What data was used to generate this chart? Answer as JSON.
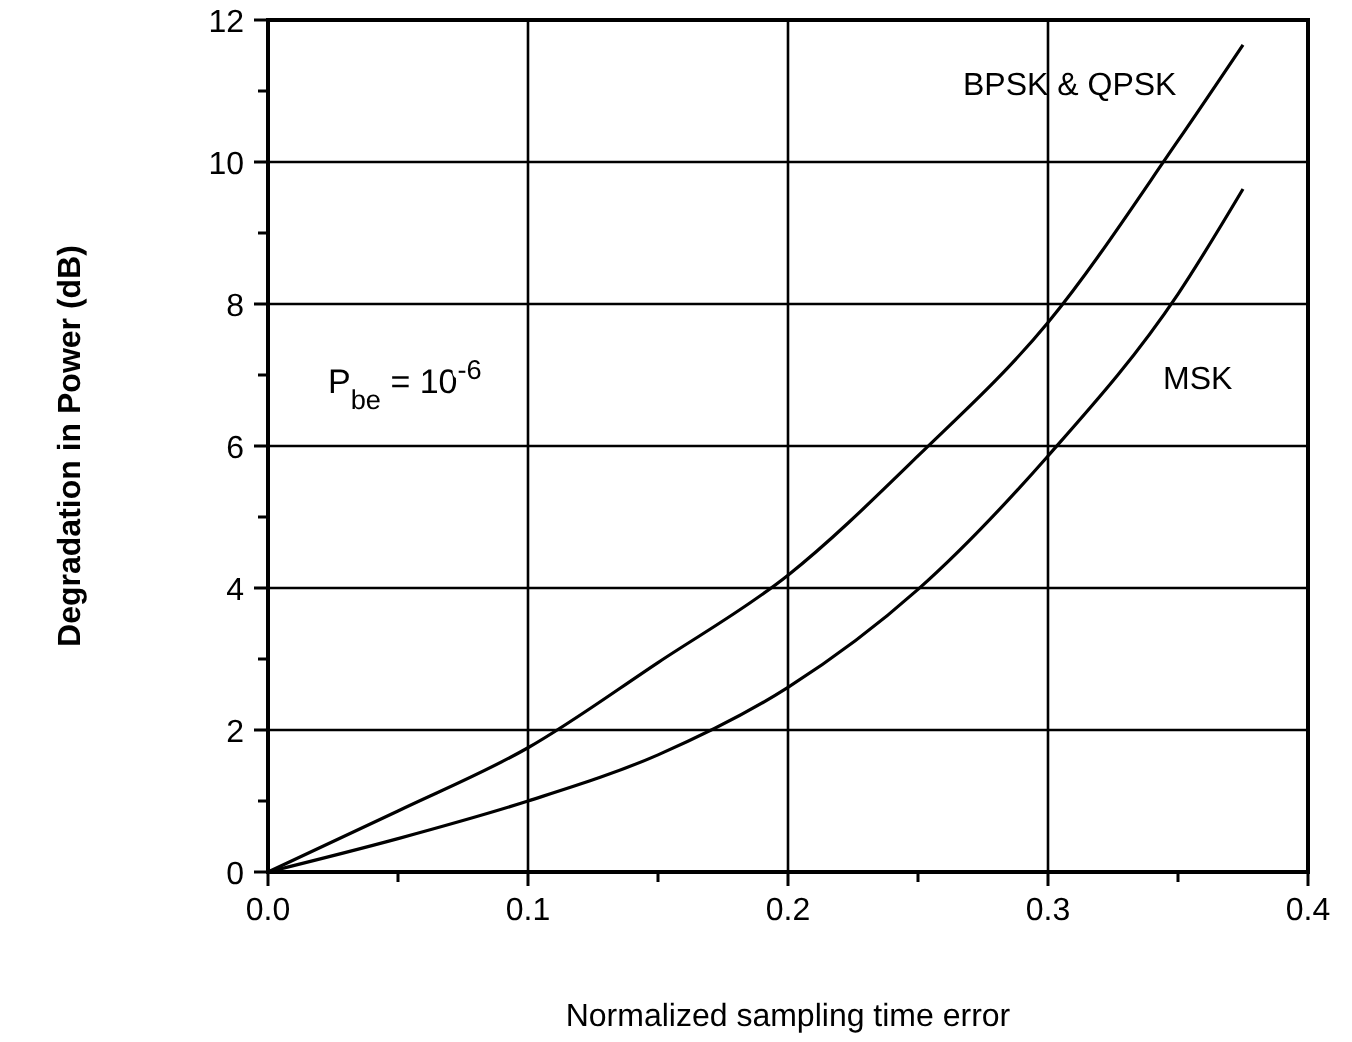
{
  "chart_data": {
    "type": "line",
    "xlabel": "Normalized sampling time error",
    "ylabel": "Degradation in Power (dB)",
    "xlim": [
      0,
      0.4
    ],
    "ylim": [
      0,
      12
    ],
    "xticks": [
      {
        "value": 0,
        "label": "0.0"
      },
      {
        "value": 0.05,
        "label": null
      },
      {
        "value": 0.1,
        "label": "0.1"
      },
      {
        "value": 0.15,
        "label": null
      },
      {
        "value": 0.2,
        "label": "0.2"
      },
      {
        "value": 0.25,
        "label": null
      },
      {
        "value": 0.3,
        "label": "0.3"
      },
      {
        "value": 0.35,
        "label": null
      },
      {
        "value": 0.4,
        "label": "0.4"
      }
    ],
    "yticks": [
      0,
      {
        "value": 1,
        "label": null
      },
      2,
      {
        "value": 3,
        "label": null
      },
      4,
      {
        "value": 5,
        "label": null
      },
      6,
      {
        "value": 7,
        "label": null
      },
      8,
      {
        "value": 9,
        "label": null
      },
      10,
      {
        "value": 11,
        "label": null
      },
      12
    ],
    "grid": true,
    "marker": "none",
    "line_style": "solid",
    "annotations": [
      "P$_{be}$ = 10$^{-6}$"
    ],
    "series": [
      {
        "name": "BPSK & QPSK",
        "color": "#000000",
        "x": [
          0,
          0.05,
          0.1,
          0.15,
          0.2,
          0.25,
          0.3,
          0.35,
          0.375
        ],
        "values": [
          0,
          0.86,
          1.75,
          2.95,
          4.18,
          5.86,
          7.74,
          10.3,
          11.65
        ]
      },
      {
        "name": "MSK",
        "color": "#000000",
        "x": [
          0,
          0.05,
          0.1,
          0.15,
          0.2,
          0.25,
          0.3,
          0.35,
          0.375
        ],
        "values": [
          0,
          0.47,
          1.0,
          1.65,
          2.6,
          3.98,
          5.86,
          8.14,
          9.62
        ]
      }
    ]
  }
}
